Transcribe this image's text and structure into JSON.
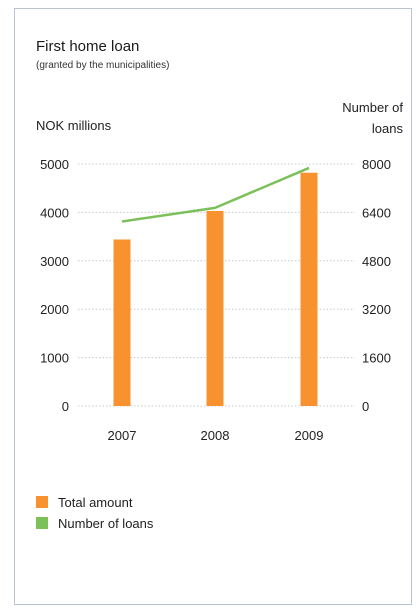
{
  "chart_data": {
    "type": "bar",
    "title": "First home loan",
    "subtitle": "(granted by the municipalities)",
    "categories": [
      "2007",
      "2008",
      "2009"
    ],
    "series": [
      {
        "name": "Total amount",
        "kind": "bar",
        "axis": "left",
        "color": "#f7922f",
        "values": [
          3440,
          4030,
          4820
        ]
      },
      {
        "name": "Number of loans",
        "kind": "line",
        "axis": "right",
        "color": "#7cc05a",
        "values": [
          6100,
          6550,
          7870
        ]
      }
    ],
    "ylabel_left": "NOK millions",
    "ylabel_right": "Number of loans",
    "ylim_left": [
      0,
      5000
    ],
    "ylim_right": [
      0,
      8000
    ],
    "yticks_left": [
      "0",
      "1000",
      "2000",
      "3000",
      "4000",
      "5000"
    ],
    "yticks_right": [
      "0",
      "1600",
      "3200",
      "4800",
      "6400",
      "8000"
    ],
    "grid": true,
    "legend_position": "bottom-left"
  }
}
